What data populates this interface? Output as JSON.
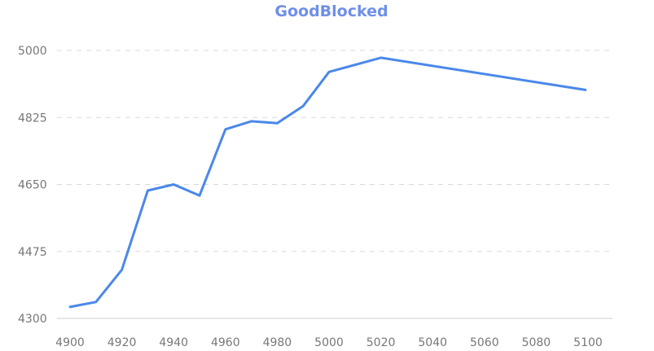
{
  "colors": {
    "title": "#6f8fe8",
    "series": "#4a88ea",
    "tick": "#777777",
    "grid": "#d8d8d8"
  },
  "chart_data": {
    "type": "line",
    "title": "GoodBlocked",
    "xlabel": "",
    "ylabel": "",
    "xlim": [
      4900,
      5100
    ],
    "ylim": [
      4300,
      5000
    ],
    "x_ticks": [
      4900,
      4920,
      4940,
      4960,
      4980,
      5000,
      5020,
      5040,
      5060,
      5080,
      5100
    ],
    "y_ticks": [
      4300,
      4475,
      4650,
      4825,
      5000
    ],
    "grid": "horizontal-dashed",
    "legend": "none",
    "series": [
      {
        "x": [
          4900,
          4910,
          4920,
          4930,
          4940,
          4950,
          4960,
          4970,
          4980,
          4990,
          5000,
          5020,
          5099
        ],
        "y": [
          4330,
          4343,
          4427,
          4634,
          4650,
          4621,
          4794,
          4815,
          4810,
          4855,
          4944,
          4981,
          4897
        ]
      }
    ]
  }
}
